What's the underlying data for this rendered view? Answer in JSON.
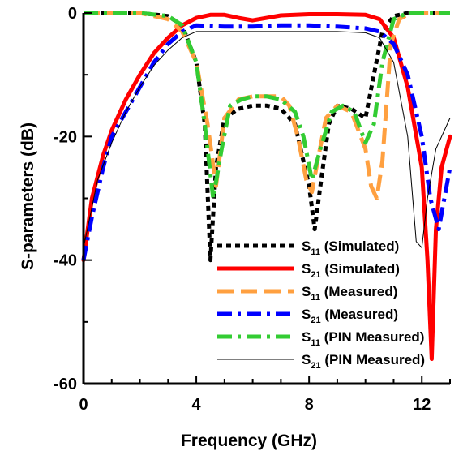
{
  "chart_data": {
    "type": "line",
    "xlabel": "Frequency (GHz)",
    "ylabel": "S-parameters (dB)",
    "xlim": [
      0,
      13
    ],
    "ylim": [
      -60,
      0
    ],
    "xticks": [
      0,
      4,
      8,
      12
    ],
    "yticks": [
      0,
      -20,
      -40,
      -60
    ],
    "grid": false,
    "legend_position": "bottom-right",
    "series": [
      {
        "name": "S11 (Simulated)",
        "label_main": "S",
        "label_sub": "11",
        "label_rest": " (Simulated)",
        "color": "#000000",
        "style": "dotted-thick",
        "x": [
          0,
          1,
          2,
          3,
          3.5,
          4,
          4.3,
          4.5,
          4.7,
          5,
          5.5,
          6,
          6.5,
          7,
          7.5,
          8,
          8.2,
          8.4,
          8.7,
          9,
          9.5,
          10,
          10.3,
          10.6,
          11,
          11.5,
          12,
          13
        ],
        "y": [
          0,
          0,
          0,
          -0.5,
          -2,
          -8,
          -18,
          -40,
          -25,
          -17,
          -15.5,
          -15,
          -15,
          -15.5,
          -18,
          -28,
          -35,
          -28,
          -18,
          -15,
          -15.5,
          -17,
          -10,
          -3,
          -0.5,
          0,
          0,
          0
        ]
      },
      {
        "name": "S21 (Simulated)",
        "label_main": "S",
        "label_sub": "21",
        "label_rest": " (Simulated)",
        "color": "#ff0000",
        "style": "solid-thick",
        "x": [
          0,
          0.3,
          0.7,
          1,
          1.5,
          2,
          2.5,
          3,
          3.5,
          4,
          4.5,
          5,
          5.5,
          6,
          7,
          8,
          9,
          10,
          10.5,
          11,
          11.5,
          12,
          12.2,
          12.35,
          12.5,
          12.7,
          13
        ],
        "y": [
          -40,
          -30,
          -23,
          -19,
          -14,
          -10,
          -6.5,
          -4,
          -2,
          -0.8,
          -0.3,
          -0.3,
          -0.8,
          -1.2,
          -0.4,
          -0.2,
          -0.2,
          -0.3,
          -1,
          -4,
          -12,
          -25,
          -40,
          -56,
          -35,
          -25,
          -20
        ]
      },
      {
        "name": "S11 (Measured)",
        "label_main": "S",
        "label_sub": "11",
        "label_rest": " (Measured)",
        "color": "#ffa040",
        "style": "long-dash",
        "x": [
          0,
          1,
          2,
          3,
          3.5,
          4,
          4.4,
          4.7,
          5,
          5.5,
          6,
          6.5,
          7,
          7.3,
          7.6,
          7.9,
          8.1,
          8.3,
          8.6,
          9,
          9.5,
          10,
          10.2,
          10.4,
          10.6,
          10.9,
          11.2,
          11.6,
          12,
          13
        ],
        "y": [
          0,
          0,
          0,
          -1,
          -3,
          -8,
          -18,
          -28,
          -17,
          -14,
          -13.5,
          -13.5,
          -13.5,
          -15,
          -20,
          -27,
          -29,
          -24,
          -17,
          -15,
          -16,
          -22,
          -28,
          -30,
          -24,
          -5,
          -1,
          0,
          0,
          0
        ]
      },
      {
        "name": "S21 (Measured)",
        "label_main": "S",
        "label_sub": "21",
        "label_rest": " (Measured)",
        "color": "#0000ff",
        "style": "dash-dot",
        "x": [
          0,
          0.3,
          0.7,
          1,
          1.5,
          2,
          2.5,
          3,
          3.5,
          4,
          5,
          6,
          7,
          8,
          9,
          10,
          10.5,
          11,
          11.5,
          12,
          12.3,
          12.6,
          12.8,
          13
        ],
        "y": [
          -40,
          -33,
          -25,
          -20,
          -16,
          -12,
          -8,
          -5,
          -3,
          -2,
          -2.2,
          -2.2,
          -2,
          -2,
          -2.2,
          -2.5,
          -3,
          -5,
          -10,
          -20,
          -30,
          -35,
          -30,
          -25
        ]
      },
      {
        "name": "S11 (PIN Measured)",
        "label_main": "S",
        "label_sub": "11",
        "label_rest": " (PIN Measured)",
        "color": "#33cc33",
        "style": "dash-dot",
        "x": [
          0,
          1,
          2,
          3,
          3.5,
          4,
          4.3,
          4.6,
          4.9,
          5.2,
          5.6,
          6,
          6.5,
          7,
          7.5,
          7.8,
          8.1,
          8.4,
          8.8,
          9.2,
          9.6,
          10,
          10.3,
          10.6,
          11,
          11.5,
          12,
          13
        ],
        "y": [
          0,
          0,
          0,
          -0.5,
          -2,
          -8,
          -18,
          -30,
          -22,
          -15,
          -14,
          -13.5,
          -13.5,
          -14,
          -16,
          -20,
          -27,
          -22,
          -16,
          -15,
          -16,
          -21,
          -18,
          -8,
          -1,
          0,
          0,
          0
        ]
      },
      {
        "name": "S21 (PIN Measured)",
        "label_main": "S",
        "label_sub": "21",
        "label_rest": " (PIN Measured)",
        "color": "#000000",
        "style": "solid-thin",
        "x": [
          0,
          0.5,
          1,
          1.5,
          2,
          2.5,
          3,
          3.5,
          4,
          5,
          6,
          7,
          8,
          9,
          10,
          10.5,
          11,
          11.5,
          11.8,
          12,
          12.2,
          12.5,
          13
        ],
        "y": [
          -38,
          -27,
          -21,
          -16,
          -12,
          -8.5,
          -6,
          -4,
          -3,
          -3,
          -3,
          -3,
          -3,
          -3,
          -3.2,
          -4,
          -8,
          -20,
          -37,
          -38,
          -30,
          -22,
          -17
        ]
      }
    ]
  }
}
